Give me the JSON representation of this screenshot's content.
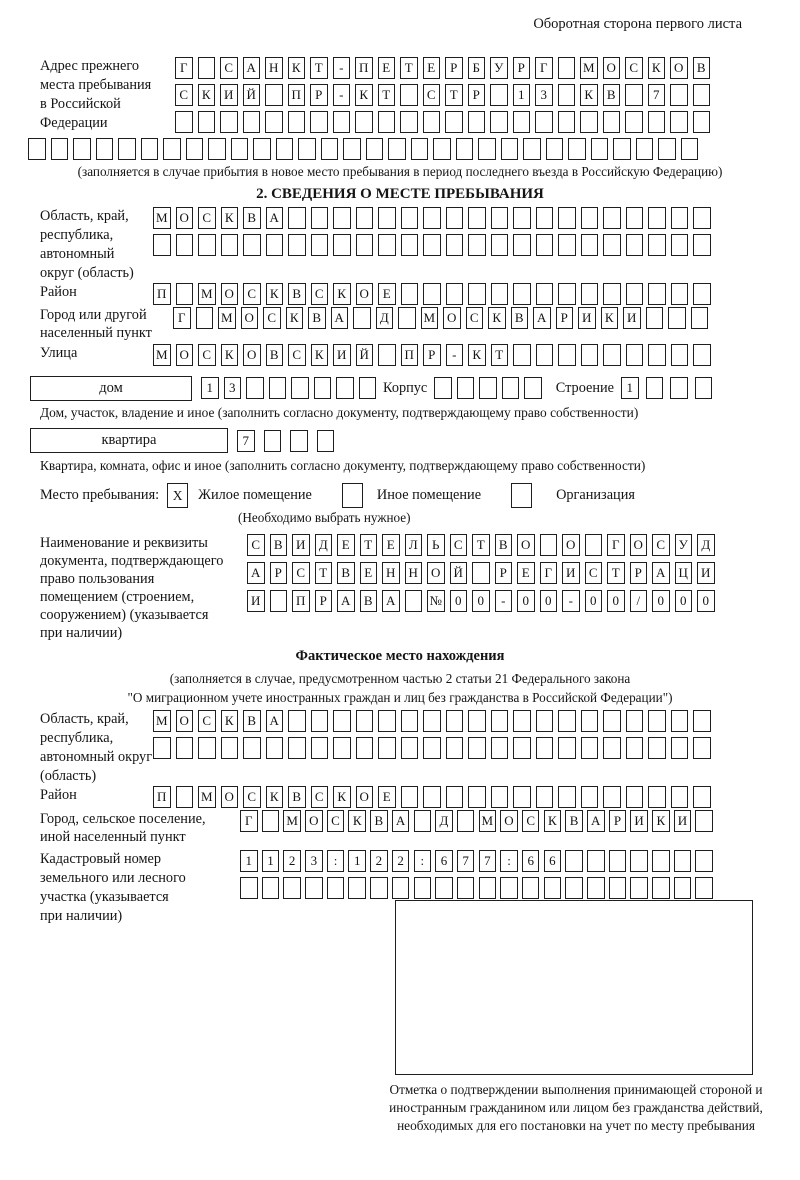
{
  "page_header": "Оборотная сторона первого листа",
  "prev_address": {
    "label_lines": [
      "Адрес прежнего",
      "места пребывания",
      "в Российской",
      "Федерации"
    ],
    "rows": [
      [
        "Г",
        "",
        "С",
        "А",
        "Н",
        "К",
        "Т",
        "-",
        "П",
        "Е",
        "Т",
        "Е",
        "Р",
        "Б",
        "У",
        "Р",
        "Г",
        "",
        "М",
        "О",
        "С",
        "К",
        "О",
        "В"
      ],
      [
        "С",
        "К",
        "И",
        "Й",
        "",
        "П",
        "Р",
        "-",
        "К",
        "Т",
        "",
        "С",
        "Т",
        "Р",
        "",
        "1",
        "3",
        "",
        "К",
        "В",
        "",
        "7",
        "",
        ""
      ],
      [
        "",
        "",
        "",
        "",
        "",
        "",
        "",
        "",
        "",
        "",
        "",
        "",
        "",
        "",
        "",
        "",
        "",
        "",
        "",
        "",
        "",
        "",
        "",
        ""
      ]
    ],
    "row_full": [
      "",
      "",
      "",
      "",
      "",
      "",
      "",
      "",
      "",
      "",
      "",
      "",
      "",
      "",
      "",
      "",
      "",
      "",
      "",
      "",
      "",
      "",
      "",
      "",
      "",
      "",
      "",
      "",
      "",
      ""
    ],
    "note": "(заполняется в случае прибытия в новое место пребывания в период последнего въезда в Российскую Федерацию)"
  },
  "section2": {
    "title": "2. СВЕДЕНИЯ О МЕСТЕ ПРЕБЫВАНИЯ",
    "region": {
      "label_lines": [
        "Область, край,",
        "республика,",
        "автономный",
        "округ (область)"
      ],
      "rows": [
        [
          "М",
          "О",
          "С",
          "К",
          "В",
          "А",
          "",
          "",
          "",
          "",
          "",
          "",
          "",
          "",
          "",
          "",
          "",
          "",
          "",
          "",
          "",
          "",
          "",
          "",
          ""
        ],
        [
          "",
          "",
          "",
          "",
          "",
          "",
          "",
          "",
          "",
          "",
          "",
          "",
          "",
          "",
          "",
          "",
          "",
          "",
          "",
          "",
          "",
          "",
          "",
          "",
          ""
        ]
      ]
    },
    "district": {
      "label": "Район",
      "row": [
        "П",
        "",
        "М",
        "О",
        "С",
        "К",
        "В",
        "С",
        "К",
        "О",
        "Е",
        "",
        "",
        "",
        "",
        "",
        "",
        "",
        "",
        "",
        "",
        "",
        "",
        "",
        ""
      ]
    },
    "city": {
      "label_lines": [
        "Город или другой",
        "населенный пункт"
      ],
      "row": [
        "Г",
        "",
        "М",
        "О",
        "С",
        "К",
        "В",
        "А",
        "",
        "Д",
        "",
        "М",
        "О",
        "С",
        "К",
        "В",
        "А",
        "Р",
        "И",
        "К",
        "И",
        "",
        "",
        ""
      ]
    },
    "street": {
      "label": "Улица",
      "row": [
        "М",
        "О",
        "С",
        "К",
        "О",
        "В",
        "С",
        "К",
        "И",
        "Й",
        "",
        "П",
        "Р",
        "-",
        "К",
        "Т",
        "",
        "",
        "",
        "",
        "",
        "",
        "",
        "",
        ""
      ]
    },
    "house": {
      "label": "дом",
      "digits": [
        "1",
        "3",
        "",
        "",
        "",
        "",
        "",
        ""
      ],
      "korpus_label": "Корпус",
      "korpus": [
        "",
        "",
        "",
        "",
        ""
      ],
      "stroenie_label": "Строение",
      "stroenie": [
        "1",
        "",
        "",
        ""
      ],
      "note": "Дом, участок, владение и иное (заполнить согласно документу, подтверждающему право собственности)"
    },
    "apartment": {
      "label": "квартира",
      "digits": [
        "7",
        "",
        "",
        ""
      ],
      "note": "Квартира, комната, офис и иное (заполнить согласно документу, подтверждающему право собственности)"
    },
    "stay_type": {
      "label": "Место пребывания:",
      "options": [
        {
          "label": "Жилое помещение",
          "mark": "X"
        },
        {
          "label": "Иное помещение",
          "mark": ""
        },
        {
          "label": "Организация",
          "mark": ""
        }
      ],
      "note": "(Необходимо выбрать нужное)"
    },
    "document": {
      "label_lines": [
        "Наименование и реквизиты",
        "документа, подтверждающего",
        "право пользования",
        "помещением (строением,",
        "сооружением) (указывается",
        "при наличии)"
      ],
      "rows": [
        [
          "С",
          "В",
          "И",
          "Д",
          "Е",
          "Т",
          "Е",
          "Л",
          "Ь",
          "С",
          "Т",
          "В",
          "О",
          "",
          "О",
          "",
          "Г",
          "О",
          "С",
          "У",
          "Д"
        ],
        [
          "А",
          "Р",
          "С",
          "Т",
          "В",
          "Е",
          "Н",
          "Н",
          "О",
          "Й",
          "",
          "Р",
          "Е",
          "Г",
          "И",
          "С",
          "Т",
          "Р",
          "А",
          "Ц",
          "И"
        ],
        [
          "И",
          "",
          "П",
          "Р",
          "А",
          "В",
          "А",
          "",
          "№",
          "0",
          "0",
          "-",
          "0",
          "0",
          "-",
          "0",
          "0",
          "/",
          "0",
          "0",
          "0"
        ]
      ]
    }
  },
  "actual_location": {
    "title": "Фактическое место нахождения",
    "note1": "(заполняется в случае, предусмотренном частью 2 статьи 21 Федерального закона",
    "note2": "\"О миграционном учете иностранных граждан и лиц без гражданства в Российской Федерации\")",
    "region": {
      "label_lines": [
        "Область, край,",
        "республика,",
        "автономный округ",
        "(область)"
      ],
      "rows": [
        [
          "М",
          "О",
          "С",
          "К",
          "В",
          "А",
          "",
          "",
          "",
          "",
          "",
          "",
          "",
          "",
          "",
          "",
          "",
          "",
          "",
          "",
          "",
          "",
          "",
          "",
          ""
        ],
        [
          "",
          "",
          "",
          "",
          "",
          "",
          "",
          "",
          "",
          "",
          "",
          "",
          "",
          "",
          "",
          "",
          "",
          "",
          "",
          "",
          "",
          "",
          "",
          "",
          ""
        ]
      ]
    },
    "district": {
      "label": "Район",
      "row": [
        "П",
        "",
        "М",
        "О",
        "С",
        "К",
        "В",
        "С",
        "К",
        "О",
        "Е",
        "",
        "",
        "",
        "",
        "",
        "",
        "",
        "",
        "",
        "",
        "",
        "",
        "",
        ""
      ]
    },
    "city": {
      "label_lines": [
        "Город, сельское поселение,",
        "иной населенный пункт"
      ],
      "row": [
        "Г",
        "",
        "М",
        "О",
        "С",
        "К",
        "В",
        "А",
        "",
        "Д",
        "",
        "М",
        "О",
        "С",
        "К",
        "В",
        "А",
        "Р",
        "И",
        "К",
        "И",
        ""
      ]
    },
    "cadastral": {
      "label_lines": [
        "Кадастровый номер",
        "земельного или лесного",
        "участка (указывается",
        "при наличии)"
      ],
      "rows": [
        [
          "1",
          "1",
          "2",
          "3",
          ":",
          "1",
          "2",
          "2",
          ":",
          "6",
          "7",
          "7",
          ":",
          "6",
          "6",
          "",
          "",
          "",
          "",
          "",
          "",
          ""
        ],
        [
          "",
          "",
          "",
          "",
          "",
          "",
          "",
          "",
          "",
          "",
          "",
          "",
          "",
          "",
          "",
          "",
          "",
          "",
          "",
          "",
          "",
          ""
        ]
      ]
    },
    "stamp_note": "Отметка о подтверждении выполнения принимающей стороной и иностранным гражданином или лицом без гражданства действий, необходимых для его постановки на учет по месту пребывания"
  }
}
